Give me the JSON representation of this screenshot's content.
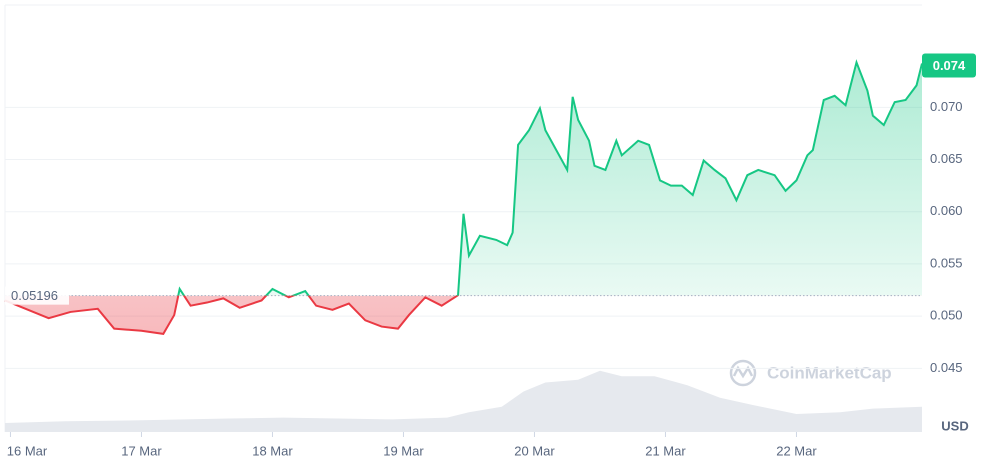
{
  "chart_data": {
    "type": "line",
    "x": [
      -1,
      7,
      11,
      16,
      19,
      24,
      28,
      30,
      31,
      33,
      36,
      39,
      42,
      46,
      48,
      51,
      54,
      56,
      59,
      62,
      65,
      68,
      71,
      73,
      76,
      79,
      82,
      83,
      84,
      86,
      89,
      91,
      92,
      93,
      95,
      97,
      98,
      100,
      102,
      103,
      104,
      106,
      107,
      109,
      111,
      112,
      115,
      117,
      119,
      121,
      123,
      125,
      127,
      129,
      131,
      133,
      135,
      137,
      140,
      142,
      144,
      146,
      147,
      149,
      151,
      153,
      155,
      157,
      158,
      160,
      162,
      164,
      166,
      167
    ],
    "values": [
      0.0515,
      0.0498,
      0.0504,
      0.0507,
      0.0488,
      0.0486,
      0.0483,
      0.0501,
      0.0526,
      0.051,
      0.0513,
      0.0517,
      0.0508,
      0.0515,
      0.0526,
      0.0518,
      0.0524,
      0.051,
      0.0506,
      0.0512,
      0.0496,
      0.049,
      0.0488,
      0.0501,
      0.0518,
      0.051,
      0.052,
      0.0598,
      0.0558,
      0.0577,
      0.0573,
      0.0568,
      0.058,
      0.0664,
      0.0678,
      0.0699,
      0.0678,
      0.0659,
      0.064,
      0.071,
      0.0688,
      0.0668,
      0.0644,
      0.064,
      0.0668,
      0.0654,
      0.0668,
      0.0664,
      0.063,
      0.0625,
      0.0625,
      0.0616,
      0.0649,
      0.064,
      0.0632,
      0.0611,
      0.0635,
      0.064,
      0.0635,
      0.062,
      0.063,
      0.0654,
      0.0659,
      0.0707,
      0.0711,
      0.0702,
      0.0743,
      0.0716,
      0.0692,
      0.0683,
      0.0705,
      0.0707,
      0.0721,
      0.0742
    ],
    "up_color": "#16c784",
    "down_color": "#ea3943",
    "baseline": 0.05196,
    "last_value": 0.074,
    "xlim": [
      -1,
      167
    ],
    "ylim": [
      0.0389,
      0.0798
    ],
    "xticks": [
      {
        "value": 0,
        "label": "16 Mar"
      },
      {
        "value": 24,
        "label": "17 Mar"
      },
      {
        "value": 48,
        "label": "18 Mar"
      },
      {
        "value": 72,
        "label": "19 Mar"
      },
      {
        "value": 96,
        "label": "20 Mar"
      },
      {
        "value": 120,
        "label": "21 Mar"
      },
      {
        "value": 144,
        "label": "22 Mar"
      }
    ],
    "yticks": [
      0.045,
      {
        "value": 0.05,
        "label": "0.050"
      },
      0.055,
      {
        "value": 0.06,
        "label": "0.060"
      },
      0.065,
      {
        "value": 0.07,
        "label": "0.070"
      }
    ],
    "grid": true,
    "y_unit": "USD",
    "watermark": "CoinMarketCap",
    "volume": {
      "x": [
        -1,
        10,
        24,
        40,
        50,
        60,
        70,
        80,
        84,
        90,
        94,
        98,
        104,
        108,
        112,
        118,
        124,
        130,
        136,
        144,
        152,
        158,
        167
      ],
      "values": [
        10,
        12,
        13,
        15,
        16,
        15,
        14,
        16,
        22,
        28,
        45,
        55,
        58,
        68,
        62,
        62,
        52,
        38,
        30,
        20,
        22,
        26,
        28
      ],
      "color": "#e6e9ee"
    },
    "volume_lim": [
      0,
      100
    ]
  }
}
